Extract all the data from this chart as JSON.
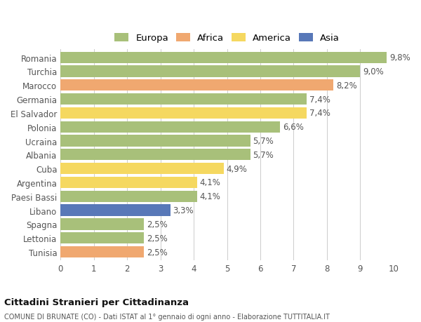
{
  "categories": [
    "Romania",
    "Turchia",
    "Marocco",
    "Germania",
    "El Salvador",
    "Polonia",
    "Ucraina",
    "Albania",
    "Cuba",
    "Argentina",
    "Paesi Bassi",
    "Libano",
    "Spagna",
    "Lettonia",
    "Tunisia"
  ],
  "values": [
    9.8,
    9.0,
    8.2,
    7.4,
    7.4,
    6.6,
    5.7,
    5.7,
    4.9,
    4.1,
    4.1,
    3.3,
    2.5,
    2.5,
    2.5
  ],
  "labels": [
    "9,8%",
    "9,0%",
    "8,2%",
    "7,4%",
    "7,4%",
    "6,6%",
    "5,7%",
    "5,7%",
    "4,9%",
    "4,1%",
    "4,1%",
    "3,3%",
    "2,5%",
    "2,5%",
    "2,5%"
  ],
  "colors": [
    "#a8c07a",
    "#a8c07a",
    "#f0a870",
    "#a8c07a",
    "#f5d860",
    "#a8c07a",
    "#a8c07a",
    "#a8c07a",
    "#f5d860",
    "#f5d860",
    "#a8c07a",
    "#5878b8",
    "#a8c07a",
    "#a8c07a",
    "#f0a870"
  ],
  "legend": [
    {
      "label": "Europa",
      "color": "#a8c07a"
    },
    {
      "label": "Africa",
      "color": "#f0a870"
    },
    {
      "label": "America",
      "color": "#f5d860"
    },
    {
      "label": "Asia",
      "color": "#5878b8"
    }
  ],
  "xlim": [
    0,
    10
  ],
  "xticks": [
    0,
    1,
    2,
    3,
    4,
    5,
    6,
    7,
    8,
    9,
    10
  ],
  "title": "Cittadini Stranieri per Cittadinanza",
  "subtitle": "COMUNE DI BRUNATE (CO) - Dati ISTAT al 1° gennaio di ogni anno - Elaborazione TUTTITALIA.IT",
  "background_color": "#ffffff",
  "bar_height": 0.82,
  "grid_color": "#cccccc",
  "label_fontsize": 8.5,
  "tick_fontsize": 8.5,
  "legend_fontsize": 9.5
}
